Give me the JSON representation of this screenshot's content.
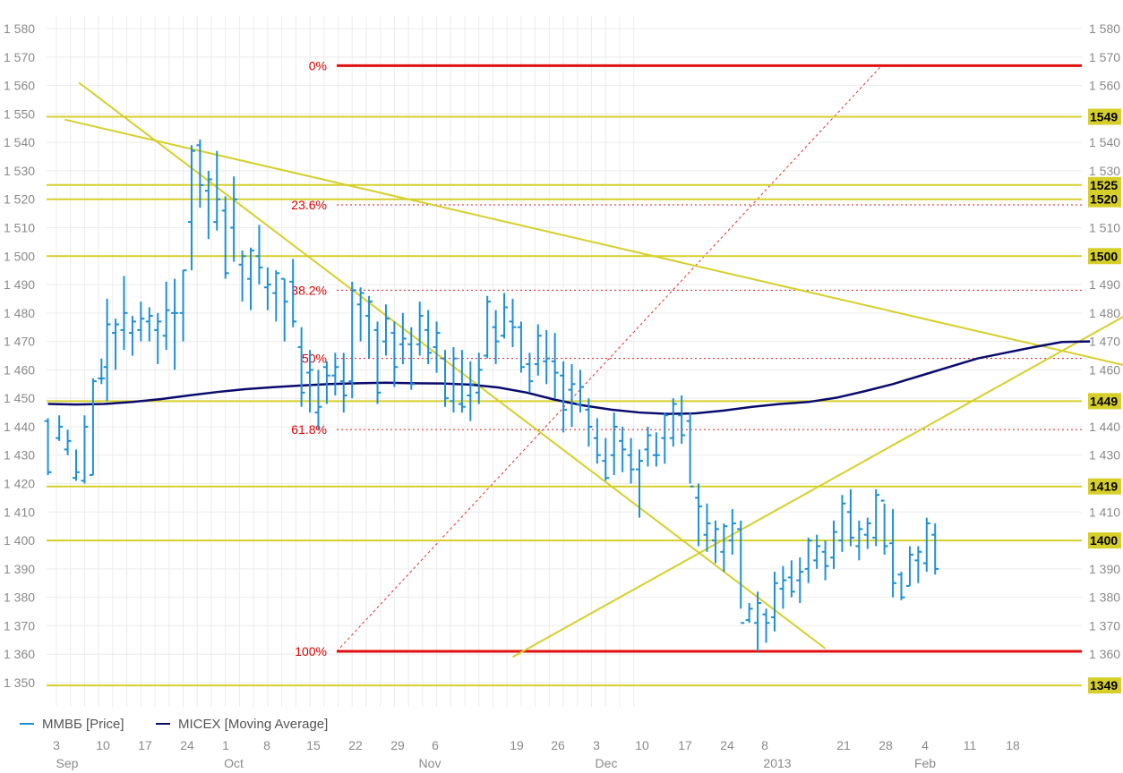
{
  "chart_data": {
    "type": "line",
    "y_range": [
      1345,
      1582
    ],
    "y_ticks": [
      1350,
      1360,
      1370,
      1380,
      1390,
      1400,
      1410,
      1420,
      1430,
      1440,
      1450,
      1460,
      1470,
      1480,
      1490,
      1500,
      1510,
      1520,
      1530,
      1540,
      1550,
      1560,
      1570,
      1580
    ],
    "y_tick_labels": [
      "1 350",
      "1 360",
      "1 370",
      "1 380",
      "1 390",
      "1 400",
      "1 410",
      "1 420",
      "1 430",
      "1 440",
      "1 450",
      "1 460",
      "1 470",
      "1 480",
      "1 490",
      "1 500",
      "1 510",
      "1 520",
      "1 530",
      "1 540",
      "1 550",
      "1 560",
      "1 570",
      "1 580"
    ],
    "x_day_labels": [
      "3",
      "10",
      "17",
      "24",
      "1",
      "8",
      "15",
      "22",
      "29",
      "6",
      "19",
      "26",
      "3",
      "10",
      "17",
      "24",
      "8",
      "21",
      "28",
      "4",
      "11",
      "18"
    ],
    "x_month_labels": [
      "Sep",
      "Oct",
      "Nov",
      "Dec",
      "2013",
      "Feb"
    ],
    "legend": [
      {
        "name": "ММВБ [Price]",
        "color": "#1e8fd6"
      },
      {
        "name": "MICEX [Moving Average]",
        "color": "#0a0a6e"
      }
    ],
    "horizontal_levels": [
      {
        "value": 1549,
        "label": "1549"
      },
      {
        "value": 1525,
        "label": "1525"
      },
      {
        "value": 1520,
        "label": "1520"
      },
      {
        "value": 1500,
        "label": "1500"
      },
      {
        "value": 1449,
        "label": "1449"
      },
      {
        "value": 1419,
        "label": "1419"
      },
      {
        "value": 1400,
        "label": "1400"
      },
      {
        "value": 1349,
        "label": "1349"
      }
    ],
    "fibonacci": {
      "high": 1567,
      "low": 1361,
      "levels": [
        {
          "label": "0%",
          "value": 1567
        },
        {
          "label": "23.6%",
          "value": 1518
        },
        {
          "label": "38.2%",
          "value": 1488
        },
        {
          "label": "50%",
          "value": 1464
        },
        {
          "label": "61.8%",
          "value": 1439
        },
        {
          "label": "100%",
          "value": 1361
        }
      ]
    },
    "trendlines": [
      {
        "from": [
          0.3,
          1548
        ],
        "to": [
          40.8,
          1455
        ]
      },
      {
        "from": [
          0.8,
          1561
        ],
        "to": [
          27.3,
          1362
        ]
      },
      {
        "from": [
          16.2,
          1359
        ],
        "to": [
          41.2,
          1497
        ]
      }
    ],
    "moving_average": [
      [
        0,
        1448
      ],
      [
        1,
        1447.8
      ],
      [
        2,
        1448
      ],
      [
        3,
        1448.7
      ],
      [
        4,
        1449.7
      ],
      [
        5,
        1451
      ],
      [
        6,
        1452.2
      ],
      [
        7,
        1453.2
      ],
      [
        8,
        1453.9
      ],
      [
        9,
        1454.5
      ],
      [
        10,
        1455
      ],
      [
        11,
        1455.3
      ],
      [
        12,
        1455.5
      ],
      [
        13,
        1455.3
      ],
      [
        14,
        1455.2
      ],
      [
        15,
        1454.8
      ],
      [
        16,
        1453.8
      ],
      [
        17,
        1452
      ],
      [
        18,
        1449.5
      ],
      [
        19,
        1447.5
      ],
      [
        20,
        1446
      ],
      [
        21,
        1445
      ],
      [
        22,
        1444.5
      ],
      [
        23,
        1444.7
      ],
      [
        24,
        1445.7
      ],
      [
        25,
        1447
      ],
      [
        26,
        1448
      ],
      [
        27,
        1448.7
      ],
      [
        28,
        1450.2
      ],
      [
        29,
        1452.5
      ],
      [
        30,
        1455
      ],
      [
        31,
        1458
      ],
      [
        32,
        1461
      ],
      [
        33,
        1464
      ],
      [
        34,
        1466
      ],
      [
        35,
        1468
      ],
      [
        36,
        1469.8
      ],
      [
        37,
        1470
      ]
    ],
    "price_bars": [
      [
        0,
        1443,
        1423,
        1442,
        1424
      ],
      [
        0.4,
        1444,
        1435,
        1436,
        1440
      ],
      [
        0.7,
        1439,
        1430,
        1432,
        1435
      ],
      [
        1,
        1432,
        1421,
        1422,
        1424
      ],
      [
        1.3,
        1444,
        1420,
        1421,
        1440
      ],
      [
        1.6,
        1457,
        1423,
        1423,
        1456
      ],
      [
        1.9,
        1464,
        1455,
        1457,
        1457
      ],
      [
        2.1,
        1485,
        1449,
        1461,
        1476
      ],
      [
        2.4,
        1478,
        1460,
        1473,
        1476
      ],
      [
        2.7,
        1493,
        1467,
        1474,
        1480
      ],
      [
        3,
        1479,
        1465,
        1473,
        1477
      ],
      [
        3.3,
        1484,
        1470,
        1474,
        1478
      ],
      [
        3.6,
        1482,
        1470,
        1477,
        1479
      ],
      [
        3.9,
        1480,
        1462,
        1474,
        1477
      ],
      [
        4.2,
        1491,
        1467,
        1472,
        1481
      ],
      [
        4.5,
        1492,
        1460,
        1480,
        1480
      ],
      [
        4.8,
        1495,
        1470,
        1480,
        1495
      ],
      [
        5.1,
        1539,
        1495,
        1512,
        1537
      ],
      [
        5.4,
        1541,
        1517,
        1539,
        1525
      ],
      [
        5.7,
        1530,
        1506,
        1523,
        1527
      ],
      [
        6,
        1537,
        1509,
        1512,
        1520
      ],
      [
        6.3,
        1521,
        1492,
        1516,
        1494
      ],
      [
        6.6,
        1528,
        1498,
        1510,
        1520
      ],
      [
        6.9,
        1502,
        1484,
        1497,
        1500
      ],
      [
        7.2,
        1503,
        1481,
        1492,
        1502
      ],
      [
        7.5,
        1511,
        1490,
        1500,
        1496
      ],
      [
        7.8,
        1496,
        1481,
        1489,
        1490
      ],
      [
        8.1,
        1495,
        1477,
        1487,
        1494
      ],
      [
        8.4,
        1492,
        1470,
        1492,
        1484
      ],
      [
        8.7,
        1499,
        1475,
        1491,
        1477
      ],
      [
        9,
        1475,
        1447,
        1468,
        1452
      ],
      [
        9.3,
        1467,
        1445,
        1459,
        1460
      ],
      [
        9.6,
        1460,
        1439,
        1445,
        1447
      ],
      [
        9.9,
        1463,
        1448,
        1461,
        1458
      ],
      [
        10.2,
        1466,
        1451,
        1458,
        1461
      ],
      [
        10.5,
        1466,
        1445,
        1456,
        1451
      ],
      [
        10.8,
        1491,
        1450,
        1456,
        1488
      ],
      [
        11.1,
        1489,
        1470,
        1483,
        1487
      ],
      [
        11.4,
        1486,
        1464,
        1479,
        1484
      ],
      [
        11.7,
        1477,
        1448,
        1474,
        1452
      ],
      [
        12,
        1483,
        1465,
        1470,
        1478
      ],
      [
        12.3,
        1477,
        1454,
        1473,
        1461
      ],
      [
        12.6,
        1480,
        1462,
        1469,
        1471
      ],
      [
        12.9,
        1475,
        1453,
        1469,
        1455
      ],
      [
        13.2,
        1484,
        1465,
        1469,
        1479
      ],
      [
        13.5,
        1481,
        1462,
        1474,
        1466
      ],
      [
        13.8,
        1477,
        1459,
        1468,
        1473
      ],
      [
        14.1,
        1467,
        1447,
        1464,
        1450
      ],
      [
        14.4,
        1468,
        1445,
        1449,
        1464
      ],
      [
        14.7,
        1467,
        1445,
        1448,
        1447
      ],
      [
        15,
        1463,
        1442,
        1451,
        1455
      ],
      [
        15.3,
        1466,
        1448,
        1452,
        1460
      ],
      [
        15.6,
        1486,
        1464,
        1465,
        1484
      ],
      [
        15.9,
        1481,
        1462,
        1475,
        1470
      ],
      [
        16.2,
        1487,
        1471,
        1472,
        1482
      ],
      [
        16.5,
        1485,
        1468,
        1477,
        1475
      ],
      [
        16.8,
        1477,
        1459,
        1475,
        1461
      ],
      [
        17.1,
        1466,
        1452,
        1462,
        1456
      ],
      [
        17.4,
        1476,
        1458,
        1462,
        1472
      ],
      [
        17.7,
        1474,
        1455,
        1463,
        1464
      ],
      [
        18,
        1473,
        1450,
        1463,
        1459
      ],
      [
        18.3,
        1463,
        1438,
        1458,
        1446
      ],
      [
        18.6,
        1462,
        1440,
        1453,
        1455
      ],
      [
        18.9,
        1460,
        1445,
        1448,
        1454
      ],
      [
        19.2,
        1450,
        1433,
        1446,
        1440
      ],
      [
        19.5,
        1443,
        1427,
        1436,
        1430
      ],
      [
        19.8,
        1436,
        1421,
        1428,
        1422
      ],
      [
        20.1,
        1445,
        1423,
        1430,
        1440
      ],
      [
        20.4,
        1440,
        1424,
        1435,
        1432
      ],
      [
        20.7,
        1436,
        1420,
        1430,
        1425
      ],
      [
        21,
        1432,
        1408,
        1425,
        1428
      ],
      [
        21.3,
        1440,
        1426,
        1432,
        1437
      ],
      [
        21.6,
        1438,
        1426,
        1430,
        1430
      ],
      [
        21.9,
        1445,
        1427,
        1436,
        1444
      ],
      [
        22.2,
        1450,
        1433,
        1436,
        1448
      ],
      [
        22.5,
        1451,
        1434,
        1444,
        1437
      ],
      [
        22.8,
        1445,
        1420,
        1442,
        1419
      ],
      [
        23.1,
        1420,
        1398,
        1415,
        1412
      ],
      [
        23.4,
        1413,
        1396,
        1402,
        1406
      ],
      [
        23.7,
        1407,
        1392,
        1400,
        1404
      ],
      [
        24,
        1406,
        1389,
        1396,
        1405
      ],
      [
        24.3,
        1411,
        1395,
        1400,
        1406
      ],
      [
        24.6,
        1407,
        1376,
        1404,
        1371
      ],
      [
        24.9,
        1378,
        1371,
        1372,
        1376
      ],
      [
        25.2,
        1382,
        1361,
        1371,
        1378
      ],
      [
        25.5,
        1376,
        1364,
        1374,
        1371
      ],
      [
        25.8,
        1389,
        1368,
        1373,
        1385
      ],
      [
        26.1,
        1391,
        1376,
        1383,
        1386
      ],
      [
        26.4,
        1393,
        1380,
        1387,
        1382
      ],
      [
        26.7,
        1394,
        1378,
        1386,
        1389
      ],
      [
        27,
        1401,
        1385,
        1390,
        1400
      ],
      [
        27.3,
        1402,
        1390,
        1393,
        1398
      ],
      [
        27.6,
        1400,
        1386,
        1396,
        1391
      ],
      [
        27.9,
        1407,
        1390,
        1394,
        1403
      ],
      [
        28.2,
        1416,
        1396,
        1400,
        1413
      ],
      [
        28.5,
        1418,
        1398,
        1410,
        1401
      ],
      [
        28.8,
        1407,
        1393,
        1398,
        1404
      ],
      [
        29.1,
        1408,
        1397,
        1402,
        1406
      ],
      [
        29.4,
        1418,
        1398,
        1401,
        1416
      ],
      [
        29.7,
        1413,
        1395,
        1414,
        1398
      ],
      [
        30,
        1411,
        1380,
        1399,
        1385
      ],
      [
        30.3,
        1389,
        1379,
        1388,
        1380
      ],
      [
        30.6,
        1398,
        1384,
        1384,
        1395
      ],
      [
        30.9,
        1398,
        1385,
        1393,
        1396
      ],
      [
        31.2,
        1408,
        1389,
        1392,
        1406
      ],
      [
        31.5,
        1406,
        1388,
        1402,
        1390
      ]
    ]
  }
}
